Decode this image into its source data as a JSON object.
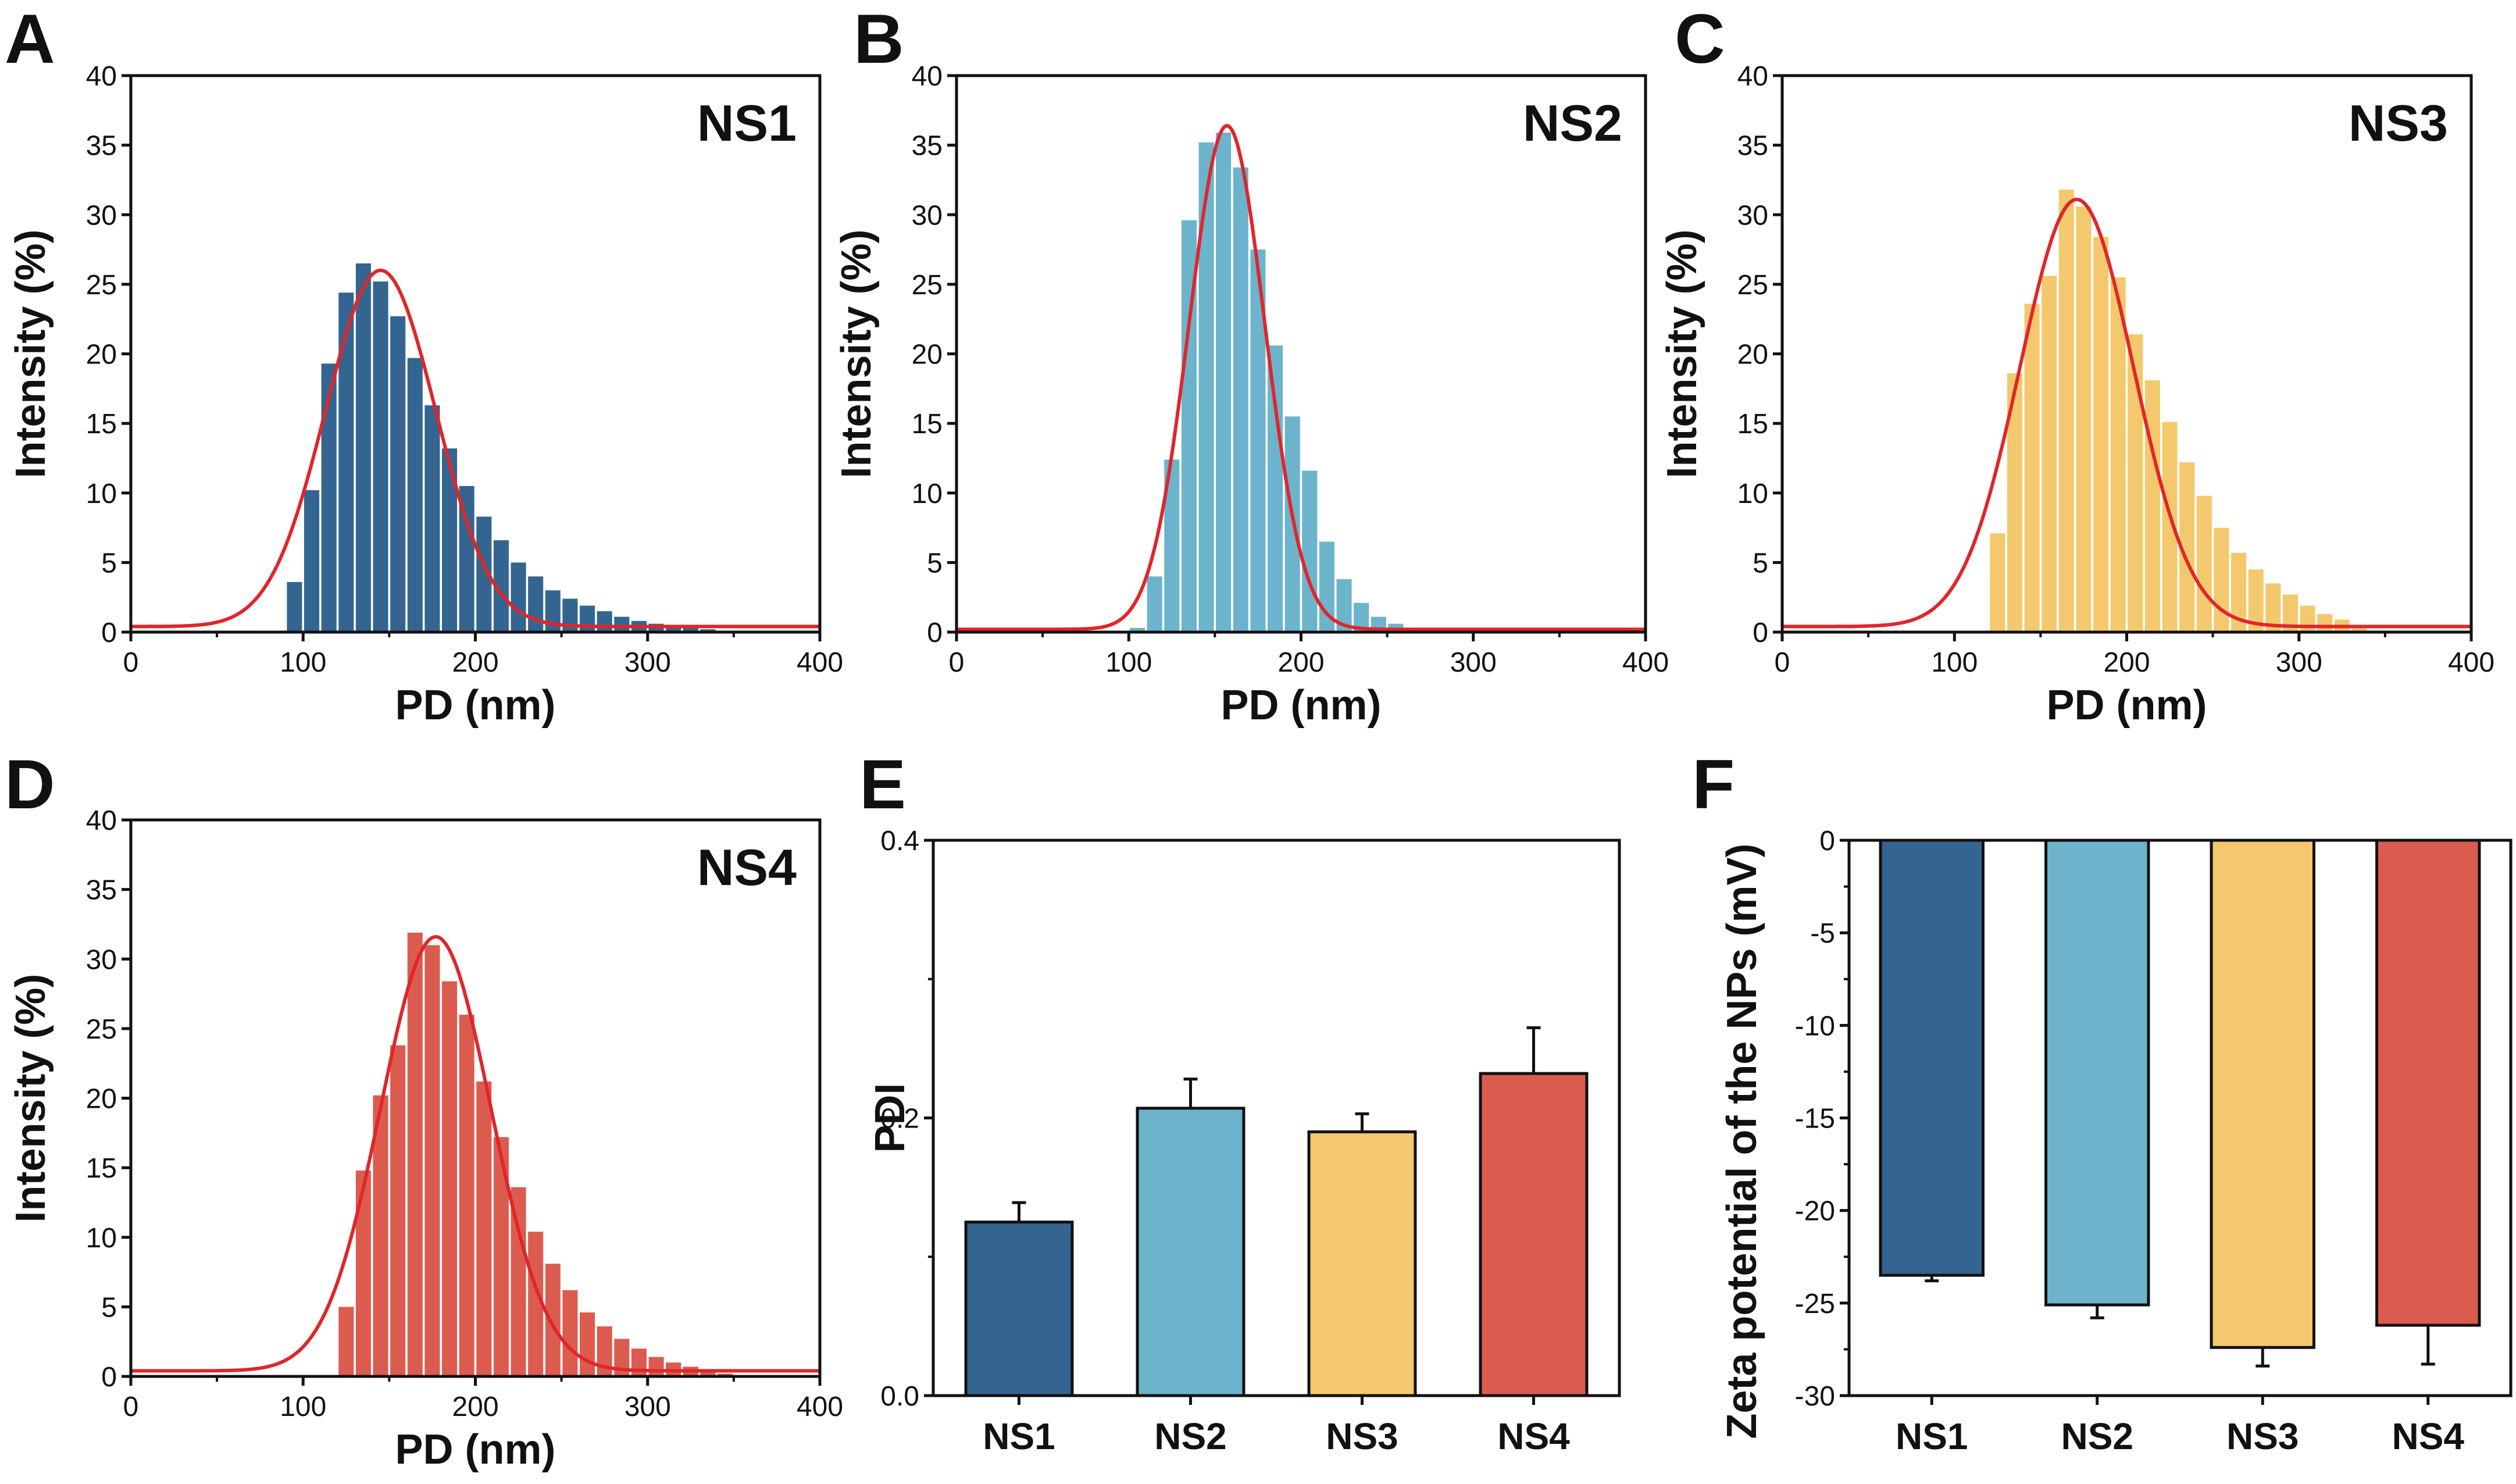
{
  "figure": {
    "panel_labels": [
      "A",
      "B",
      "C",
      "D",
      "E",
      "F"
    ]
  },
  "colors": {
    "NS1": "#336590",
    "NS2": "#6cb3cc",
    "NS3": "#f4c86c",
    "NS4": "#db5c4f",
    "fit": "#e0262b",
    "axis": "#111111"
  },
  "chart_data": [
    {
      "panel": "A",
      "type": "bar",
      "label": "NS1",
      "xlabel": "PD (nm)",
      "ylabel": "Intensity (%)",
      "xlim": [
        0,
        400
      ],
      "ylim": [
        0,
        40
      ],
      "xticks": [
        "0",
        "100",
        "200",
        "300",
        "400"
      ],
      "yticks": [
        "0",
        "5",
        "10",
        "15",
        "20",
        "25",
        "30",
        "35",
        "40"
      ],
      "bin_width": 10,
      "x": [
        90,
        100,
        110,
        120,
        130,
        140,
        150,
        160,
        170,
        180,
        190,
        200,
        210,
        220,
        230,
        240,
        250,
        260,
        270,
        280,
        290,
        300,
        310,
        320,
        330
      ],
      "values": [
        3.6,
        10.2,
        19.3,
        24.4,
        26.5,
        25.2,
        22.7,
        19.7,
        16.3,
        13.2,
        10.5,
        8.3,
        6.6,
        5.0,
        4.0,
        3.0,
        2.4,
        1.9,
        1.5,
        1.1,
        0.8,
        0.6,
        0.4,
        0.3,
        0.2
      ],
      "fit": {
        "type": "gaussian",
        "center": 145,
        "sigma": 32,
        "peak": 25.6,
        "baseline": 0.4
      }
    },
    {
      "panel": "B",
      "type": "bar",
      "label": "NS2",
      "xlabel": "PD (nm)",
      "ylabel": "Intensity (%)",
      "xlim": [
        0,
        400
      ],
      "ylim": [
        0,
        40
      ],
      "xticks": [
        "0",
        "100",
        "200",
        "300",
        "400"
      ],
      "yticks": [
        "0",
        "5",
        "10",
        "15",
        "20",
        "25",
        "30",
        "35",
        "40"
      ],
      "bin_width": 10,
      "x": [
        100,
        110,
        120,
        130,
        140,
        150,
        160,
        170,
        180,
        190,
        200,
        210,
        220,
        230,
        240,
        250,
        260,
        270
      ],
      "values": [
        0.3,
        4.0,
        12.4,
        29.6,
        35.2,
        35.9,
        33.4,
        27.5,
        20.6,
        15.5,
        11.6,
        6.5,
        3.8,
        2.1,
        1.1,
        0.6,
        0.3,
        0.1
      ],
      "fit": {
        "type": "gaussian",
        "center": 157,
        "sigma": 22,
        "peak": 36.2,
        "baseline": 0.2
      }
    },
    {
      "panel": "C",
      "type": "bar",
      "label": "NS3",
      "xlabel": "PD (nm)",
      "ylabel": "Intensity (%)",
      "xlim": [
        0,
        400
      ],
      "ylim": [
        0,
        40
      ],
      "xticks": [
        "0",
        "100",
        "200",
        "300",
        "400"
      ],
      "yticks": [
        "0",
        "5",
        "10",
        "15",
        "20",
        "25",
        "30",
        "35",
        "40"
      ],
      "bin_width": 10,
      "x": [
        120,
        130,
        140,
        150,
        160,
        170,
        180,
        190,
        200,
        210,
        220,
        230,
        240,
        250,
        260,
        270,
        280,
        290,
        300,
        310,
        320,
        330
      ],
      "values": [
        7.1,
        18.6,
        23.6,
        25.6,
        31.8,
        30.6,
        28.4,
        25.5,
        21.4,
        18.1,
        15.1,
        12.2,
        9.8,
        7.5,
        5.7,
        4.5,
        3.5,
        2.7,
        1.9,
        1.3,
        0.9,
        0.5
      ],
      "fit": {
        "type": "gaussian",
        "center": 171,
        "sigma": 33,
        "peak": 30.7,
        "baseline": 0.4
      }
    },
    {
      "panel": "D",
      "type": "bar",
      "label": "NS4",
      "xlabel": "PD (nm)",
      "ylabel": "Intensity (%)",
      "xlim": [
        0,
        400
      ],
      "ylim": [
        0,
        40
      ],
      "xticks": [
        "0",
        "100",
        "200",
        "300",
        "400"
      ],
      "yticks": [
        "0",
        "5",
        "10",
        "15",
        "20",
        "25",
        "30",
        "35",
        "40"
      ],
      "bin_width": 10,
      "x": [
        120,
        130,
        140,
        150,
        160,
        170,
        180,
        190,
        200,
        210,
        220,
        230,
        240,
        250,
        260,
        270,
        280,
        290,
        300,
        310,
        320,
        330,
        340
      ],
      "values": [
        5.0,
        14.8,
        20.2,
        23.8,
        31.9,
        31.0,
        28.4,
        26.0,
        21.2,
        17.2,
        13.6,
        10.4,
        8.1,
        6.2,
        4.6,
        3.6,
        2.7,
        2.0,
        1.4,
        1.0,
        0.7,
        0.4,
        0.2
      ],
      "fit": {
        "type": "gaussian",
        "center": 177,
        "sigma": 32,
        "peak": 31.2,
        "baseline": 0.4
      }
    },
    {
      "panel": "E",
      "type": "bar",
      "xlabel": "",
      "ylabel": "PDI",
      "ylim": [
        0,
        0.4
      ],
      "yticks": [
        "0.0",
        "0.2",
        "0.4"
      ],
      "categories": [
        "NS1",
        "NS2",
        "NS3",
        "NS4"
      ],
      "values": [
        0.125,
        0.207,
        0.19,
        0.232
      ],
      "errors": [
        0.014,
        0.021,
        0.013,
        0.033
      ]
    },
    {
      "panel": "F",
      "type": "bar",
      "xlabel": "",
      "ylabel": "Zeta potential of the NPs (mV)",
      "ylim": [
        -30,
        0
      ],
      "yticks": [
        "0",
        "-5",
        "-10",
        "-15",
        "-20",
        "-25",
        "-30"
      ],
      "categories": [
        "NS1",
        "NS2",
        "NS3",
        "NS4"
      ],
      "values": [
        -23.5,
        -25.1,
        -27.4,
        -26.2
      ],
      "errors": [
        0.3,
        0.7,
        1.0,
        2.1
      ]
    }
  ]
}
